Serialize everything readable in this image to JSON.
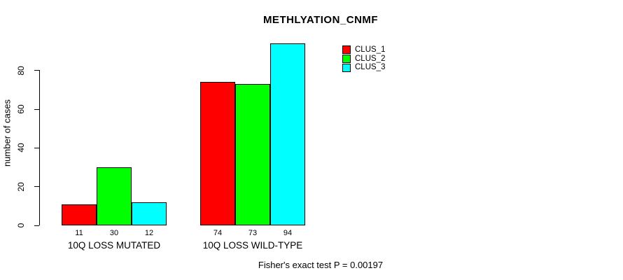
{
  "title": "METHLYATION_CNMF",
  "y_axis": {
    "label": "number of cases"
  },
  "footer": "Fisher's exact test P = 0.00197",
  "chart_data": {
    "type": "bar",
    "title": "METHLYATION_CNMF",
    "xlabel": "",
    "ylabel": "number of cases",
    "categories": [
      "10Q LOSS MUTATED",
      "10Q LOSS WILD-TYPE"
    ],
    "series": [
      {
        "name": "CLUS_1",
        "color": "#FF0000",
        "values": [
          11,
          74
        ]
      },
      {
        "name": "CLUS_2",
        "color": "#00FF00",
        "values": [
          30,
          73
        ]
      },
      {
        "name": "CLUS_3",
        "color": "#00FFFF",
        "values": [
          12,
          94
        ]
      }
    ],
    "bar_value_labels": [
      [
        11,
        30,
        12
      ],
      [
        74,
        73,
        94
      ]
    ],
    "yticks": [
      0,
      20,
      40,
      60,
      80
    ],
    "ylim": [
      0,
      95
    ],
    "grid": false,
    "legend_position": "top-right",
    "legend_entries": [
      "CLUS_1",
      "CLUS_2",
      "CLUS_3"
    ],
    "annotation": "Fisher's exact test P = 0.00197"
  }
}
